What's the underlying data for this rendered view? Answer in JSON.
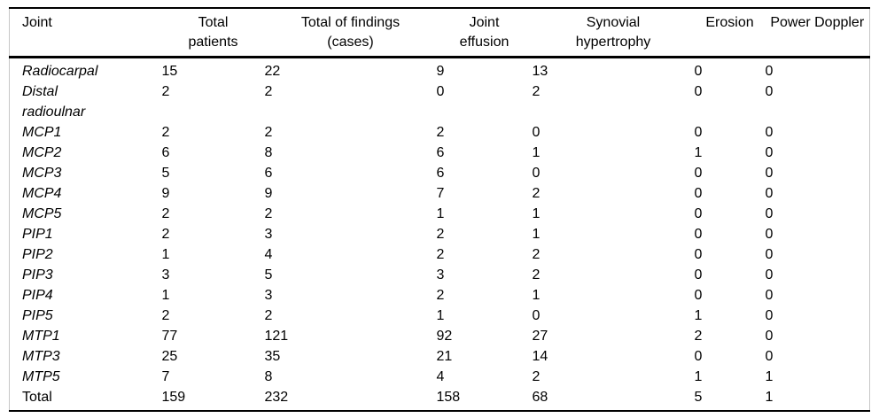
{
  "table": {
    "columns": [
      {
        "line1": "Joint",
        "line2": ""
      },
      {
        "line1": "Total",
        "line2": "patients"
      },
      {
        "line1": "Total of findings",
        "line2": "(cases)"
      },
      {
        "line1": "Joint",
        "line2": "effusion"
      },
      {
        "line1": "Synovial",
        "line2": "hypertrophy"
      },
      {
        "line1": "Erosion",
        "line2": ""
      },
      {
        "line1": "Power Doppler",
        "line2": ""
      }
    ],
    "rows": [
      {
        "joint": "Radiocarpal",
        "italic": true,
        "values": [
          "15",
          "22",
          "9",
          "13",
          "0",
          "0"
        ]
      },
      {
        "joint": "Distal\nradioulnar",
        "italic": true,
        "values": [
          "2",
          "2",
          "0",
          "2",
          "0",
          "0"
        ]
      },
      {
        "joint": "MCP1",
        "italic": true,
        "values": [
          "2",
          "2",
          "2",
          "0",
          "0",
          "0"
        ]
      },
      {
        "joint": "MCP2",
        "italic": true,
        "values": [
          "6",
          "8",
          "6",
          "1",
          "1",
          "0"
        ]
      },
      {
        "joint": "MCP3",
        "italic": true,
        "values": [
          "5",
          "6",
          "6",
          "0",
          "0",
          "0"
        ]
      },
      {
        "joint": "MCP4",
        "italic": true,
        "values": [
          "9",
          "9",
          "7",
          "2",
          "0",
          "0"
        ]
      },
      {
        "joint": "MCP5",
        "italic": true,
        "values": [
          "2",
          "2",
          "1",
          "1",
          "0",
          "0"
        ]
      },
      {
        "joint": "PIP1",
        "italic": true,
        "values": [
          "2",
          "3",
          "2",
          "1",
          "0",
          "0"
        ]
      },
      {
        "joint": "PIP2",
        "italic": true,
        "values": [
          "1",
          "4",
          "2",
          "2",
          "0",
          "0"
        ]
      },
      {
        "joint": "PIP3",
        "italic": true,
        "values": [
          "3",
          "5",
          "3",
          "2",
          "0",
          "0"
        ]
      },
      {
        "joint": "PIP4",
        "italic": true,
        "values": [
          "1",
          "3",
          "2",
          "1",
          "0",
          "0"
        ]
      },
      {
        "joint": "PIP5",
        "italic": true,
        "values": [
          "2",
          "2",
          "1",
          "0",
          "1",
          "0"
        ]
      },
      {
        "joint": "MTP1",
        "italic": true,
        "values": [
          "77",
          "121",
          "92",
          "27",
          "2",
          "0"
        ]
      },
      {
        "joint": "MTP3",
        "italic": true,
        "values": [
          "25",
          "35",
          "21",
          "14",
          "0",
          "0"
        ]
      },
      {
        "joint": "MTP5",
        "italic": true,
        "values": [
          "7",
          "8",
          "4",
          "2",
          "1",
          "1"
        ]
      },
      {
        "joint": "Total",
        "italic": false,
        "values": [
          "159",
          "232",
          "158",
          "68",
          "5",
          "1"
        ]
      }
    ]
  },
  "colors": {
    "rule": "#000000",
    "side_frame": "#c6c6c6",
    "text": "#000000",
    "background": "#ffffff"
  }
}
